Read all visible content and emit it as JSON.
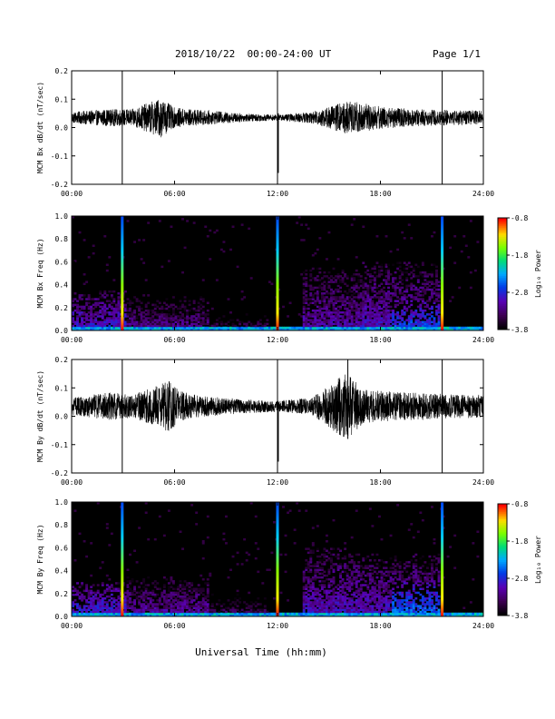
{
  "header": {
    "title": "2018/10/22  00:00-24:00 UT",
    "page": "Page 1/1"
  },
  "xlabel": "Universal Time (hh:mm)",
  "colorbar": {
    "label": "Log₁₀ Power",
    "ticks": [
      "-0.8",
      "-1.8",
      "-2.8",
      "-3.8"
    ],
    "range": [
      -3.8,
      -0.8
    ]
  },
  "chart_data": [
    {
      "type": "line",
      "ylabel": "MCM Bx dB/dt (nT/sec)",
      "xlim_hours": [
        0,
        24
      ],
      "ylim": [
        -0.2,
        0.2
      ],
      "xticks": [
        "00:00",
        "06:00",
        "12:00",
        "18:00",
        "24:00"
      ],
      "yticks": [
        "0.2",
        "0.1",
        "0.0",
        "-0.1",
        "-0.2"
      ],
      "baseline": 0.035,
      "spikes": [
        {
          "x": 2.95,
          "min": -0.2,
          "max": 0.2
        },
        {
          "x": 12.0,
          "min": -0.2,
          "max": 0.2
        },
        {
          "x": 12.05,
          "min": -0.16,
          "max": 0.05
        },
        {
          "x": 21.6,
          "min": -0.2,
          "max": 0.2
        }
      ],
      "envelope": [
        {
          "x": 0,
          "amp": 0.02
        },
        {
          "x": 2,
          "amp": 0.03
        },
        {
          "x": 3.5,
          "amp": 0.03
        },
        {
          "x": 5.2,
          "amp": 0.07
        },
        {
          "x": 6,
          "amp": 0.035
        },
        {
          "x": 8,
          "amp": 0.025
        },
        {
          "x": 10,
          "amp": 0.015
        },
        {
          "x": 12,
          "amp": 0.01
        },
        {
          "x": 13,
          "amp": 0.015
        },
        {
          "x": 14,
          "amp": 0.02
        },
        {
          "x": 15.8,
          "amp": 0.055
        },
        {
          "x": 16.3,
          "amp": 0.06
        },
        {
          "x": 18,
          "amp": 0.04
        },
        {
          "x": 20,
          "amp": 0.03
        },
        {
          "x": 24,
          "amp": 0.025
        }
      ]
    },
    {
      "type": "heatmap",
      "ylabel": "MCM Bx Freq (Hz)",
      "xlim_hours": [
        0,
        24
      ],
      "ylim": [
        0,
        1.0
      ],
      "xticks": [
        "00:00",
        "06:00",
        "12:00",
        "18:00",
        "24:00"
      ],
      "yticks": [
        "1.0",
        "0.8",
        "0.6",
        "0.4",
        "0.2",
        "0.0"
      ],
      "vertical_lines": [
        2.95,
        12.0,
        21.6
      ],
      "activity_regions": [
        {
          "x0": 0,
          "x1": 3.2,
          "f_max": 0.35,
          "level": -2.9
        },
        {
          "x0": 3.2,
          "x1": 8,
          "f_max": 0.3,
          "level": -3.2
        },
        {
          "x0": 8,
          "x1": 11.5,
          "f_max": 0.15,
          "level": -3.4
        },
        {
          "x0": 13.5,
          "x1": 17,
          "f_max": 0.55,
          "level": -3.1
        },
        {
          "x0": 17,
          "x1": 21.5,
          "f_max": 0.6,
          "level": -3.0
        },
        {
          "x0": 18.7,
          "x1": 21.5,
          "f_max": 0.25,
          "level": -2.6
        }
      ]
    },
    {
      "type": "line",
      "ylabel": "MCM By dB/dt (nT/sec)",
      "xlim_hours": [
        0,
        24
      ],
      "ylim": [
        -0.2,
        0.2
      ],
      "xticks": [
        "00:00",
        "06:00",
        "12:00",
        "18:00",
        "24:00"
      ],
      "yticks": [
        "0.2",
        "0.1",
        "0.0",
        "-0.1",
        "-0.2"
      ],
      "baseline": 0.035,
      "spikes": [
        {
          "x": 2.95,
          "min": -0.2,
          "max": 0.2
        },
        {
          "x": 12.0,
          "min": -0.2,
          "max": 0.2
        },
        {
          "x": 12.05,
          "min": -0.16,
          "max": 0.05
        },
        {
          "x": 21.6,
          "min": -0.2,
          "max": 0.2
        },
        {
          "x": 16.1,
          "min": -0.08,
          "max": 0.2
        }
      ],
      "envelope": [
        {
          "x": 0,
          "amp": 0.03
        },
        {
          "x": 2.2,
          "amp": 0.05
        },
        {
          "x": 3.5,
          "amp": 0.04
        },
        {
          "x": 5.7,
          "amp": 0.09
        },
        {
          "x": 6.5,
          "amp": 0.05
        },
        {
          "x": 8,
          "amp": 0.035
        },
        {
          "x": 10,
          "amp": 0.025
        },
        {
          "x": 12,
          "amp": 0.02
        },
        {
          "x": 14,
          "amp": 0.03
        },
        {
          "x": 16,
          "amp": 0.12
        },
        {
          "x": 17,
          "amp": 0.06
        },
        {
          "x": 19,
          "amp": 0.05
        },
        {
          "x": 24,
          "amp": 0.04
        }
      ]
    },
    {
      "type": "heatmap",
      "ylabel": "MCM By Freq (Hz)",
      "xlim_hours": [
        0,
        24
      ],
      "ylim": [
        0,
        1.0
      ],
      "xticks": [
        "00:00",
        "06:00",
        "12:00",
        "18:00",
        "24:00"
      ],
      "yticks": [
        "1.0",
        "0.8",
        "0.6",
        "0.4",
        "0.2",
        "0.0"
      ],
      "vertical_lines": [
        2.95,
        12.0,
        21.6
      ],
      "activity_regions": [
        {
          "x0": 0,
          "x1": 3.2,
          "f_max": 0.3,
          "level": -2.8
        },
        {
          "x0": 3.2,
          "x1": 8,
          "f_max": 0.35,
          "level": -3.1
        },
        {
          "x0": 8,
          "x1": 11.5,
          "f_max": 0.2,
          "level": -3.4
        },
        {
          "x0": 13.5,
          "x1": 17,
          "f_max": 0.6,
          "level": -3.0
        },
        {
          "x0": 17,
          "x1": 21.5,
          "f_max": 0.55,
          "level": -3.0
        },
        {
          "x0": 18.7,
          "x1": 21.5,
          "f_max": 0.3,
          "level": -2.5
        }
      ]
    }
  ]
}
